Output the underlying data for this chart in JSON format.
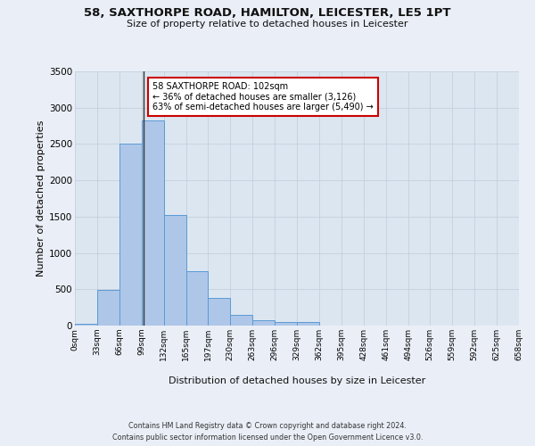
{
  "title": "58, SAXTHORPE ROAD, HAMILTON, LEICESTER, LE5 1PT",
  "subtitle": "Size of property relative to detached houses in Leicester",
  "xlabel": "Distribution of detached houses by size in Leicester",
  "ylabel": "Number of detached properties",
  "footer_line1": "Contains HM Land Registry data © Crown copyright and database right 2024.",
  "footer_line2": "Contains public sector information licensed under the Open Government Licence v3.0.",
  "bin_labels": [
    "0sqm",
    "33sqm",
    "66sqm",
    "99sqm",
    "132sqm",
    "165sqm",
    "197sqm",
    "230sqm",
    "263sqm",
    "296sqm",
    "329sqm",
    "362sqm",
    "395sqm",
    "428sqm",
    "461sqm",
    "494sqm",
    "526sqm",
    "559sqm",
    "592sqm",
    "625sqm",
    "658sqm"
  ],
  "bar_values": [
    25,
    490,
    2510,
    2820,
    1520,
    750,
    385,
    145,
    75,
    55,
    55,
    0,
    0,
    0,
    0,
    0,
    0,
    0,
    0,
    0
  ],
  "bar_color": "#aec6e8",
  "bar_edge_color": "#5b9bd5",
  "highlight_x": 102,
  "annotation_title": "58 SAXTHORPE ROAD: 102sqm",
  "annotation_line2": "← 36% of detached houses are smaller (3,126)",
  "annotation_line3": "63% of semi-detached houses are larger (5,490) →",
  "vline_color": "#333333",
  "annotation_box_color": "#ffffff",
  "annotation_box_edge": "#cc0000",
  "ylim": [
    0,
    3500
  ],
  "xlim_min": 0,
  "xlim_max": 658,
  "bg_color": "#eaeff7",
  "plot_bg_color": "#dce6f1",
  "grid_color": "#c0ccd8",
  "yticks": [
    0,
    500,
    1000,
    1500,
    2000,
    2500,
    3000,
    3500
  ],
  "bin_edges": [
    0,
    33,
    66,
    99,
    132,
    165,
    197,
    230,
    263,
    296,
    329,
    362,
    395,
    428,
    461,
    494,
    526,
    559,
    592,
    625,
    658
  ]
}
